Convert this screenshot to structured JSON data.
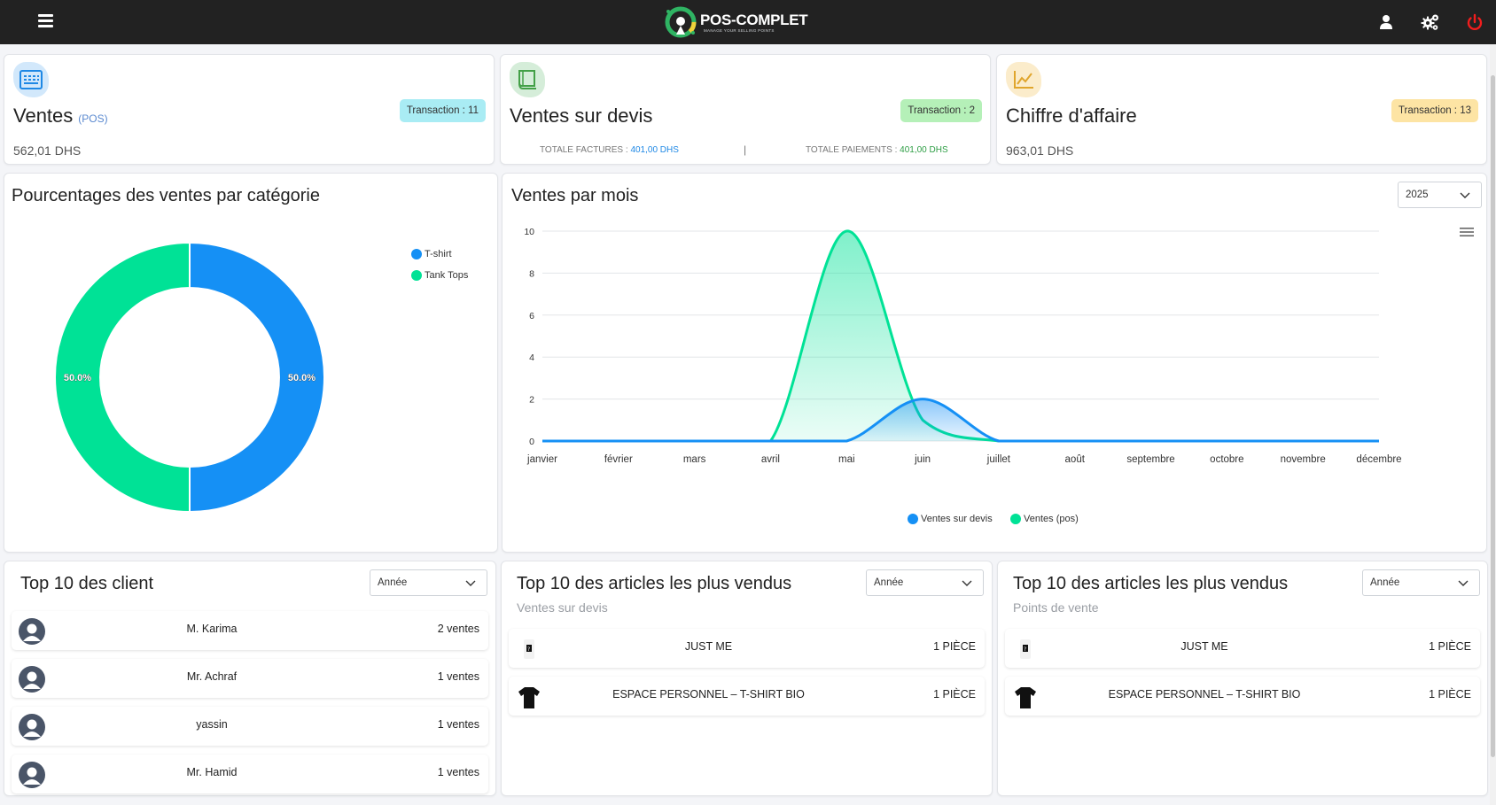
{
  "header": {
    "menu_icon": "hamburger-icon",
    "brand": "POS-COMPLET",
    "tagline": "MANAGE YOUR SELLING POINTS",
    "icons": [
      "user-icon",
      "settings-icon",
      "power-icon"
    ]
  },
  "colors": {
    "blue": "#1590f5",
    "green": "#00e296",
    "topbar": "#222222",
    "power": "#f21d1d"
  },
  "stats": [
    {
      "title": "Ventes",
      "subtitle": "(POS)",
      "badge": "Transaction : 11",
      "value": "562,01 DHS",
      "icon": "keyboard-icon"
    },
    {
      "title": "Ventes sur devis",
      "badge": "Transaction : 2",
      "factures_label": "TOTALE FACTURES :",
      "factures_value": "401,00 DHS",
      "separator": "|",
      "paiements_label": "TOTALE PAIEMENTS :",
      "paiements_value": "401,00 DHS",
      "icon": "ledger-icon"
    },
    {
      "title": "Chiffre d'affaire",
      "badge": "Transaction : 13",
      "value": "963,01 DHS",
      "icon": "trend-chart-icon"
    }
  ],
  "donut": {
    "title": "Pourcentages des ventes par catégorie"
  },
  "line": {
    "title": "Ventes par mois",
    "year": "2025"
  },
  "chart_data": [
    {
      "type": "pie",
      "title": "Pourcentages des ventes par catégorie",
      "categories": [
        "T-shirt",
        "Tank Tops"
      ],
      "values": [
        50.0,
        50.0
      ],
      "labels": [
        "50.0%",
        "50.0%"
      ],
      "colors": [
        "#1590f5",
        "#00e296"
      ],
      "legend": "top-right"
    },
    {
      "type": "area",
      "title": "Ventes par mois",
      "categories": [
        "janvier",
        "février",
        "mars",
        "avril",
        "mai",
        "juin",
        "juillet",
        "août",
        "septembre",
        "octobre",
        "novembre",
        "décembre"
      ],
      "series": [
        {
          "name": "Ventes sur devis",
          "color": "#1590f5",
          "values": [
            0,
            0,
            0,
            0,
            0,
            2,
            0,
            0,
            0,
            0,
            0,
            0
          ]
        },
        {
          "name": "Ventes (pos)",
          "color": "#00e296",
          "values": [
            0,
            0,
            0,
            0,
            10,
            1,
            0,
            0,
            0,
            0,
            0,
            0
          ]
        }
      ],
      "ylim": [
        0,
        10
      ],
      "yticks": [
        "0",
        "2",
        "4",
        "6",
        "8",
        "10"
      ],
      "grid": true,
      "legend": "bottom-center"
    }
  ],
  "clients": {
    "title": "Top 10 des client",
    "filter": "Année",
    "rows": [
      {
        "name": "M. Karima",
        "count": "2 ventes"
      },
      {
        "name": "Mr. Achraf",
        "count": "1 ventes"
      },
      {
        "name": "yassin",
        "count": "1 ventes"
      },
      {
        "name": "Mr. Hamid",
        "count": "1 ventes"
      }
    ]
  },
  "articles_devis": {
    "title": "Top 10 des articles les plus vendus",
    "subtitle": "Ventes sur devis",
    "filter": "Année",
    "rows": [
      {
        "name": "JUST ME",
        "count": "1 PIÈCE",
        "icon": "tag-icon"
      },
      {
        "name": "ESPACE PERSONNEL – T-SHIRT BIO",
        "count": "1 PIÈCE",
        "icon": "tshirt-icon"
      }
    ]
  },
  "articles_pos": {
    "title": "Top 10 des articles les plus vendus",
    "subtitle": "Points de vente",
    "filter": "Année",
    "rows": [
      {
        "name": "JUST ME",
        "count": "1 PIÈCE",
        "icon": "tag-icon"
      },
      {
        "name": "ESPACE PERSONNEL – T-SHIRT BIO",
        "count": "1 PIÈCE",
        "icon": "tshirt-icon"
      }
    ]
  }
}
